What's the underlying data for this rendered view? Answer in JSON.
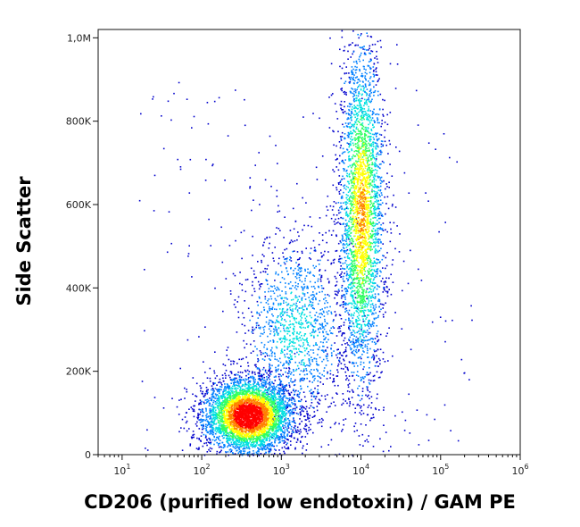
{
  "chart_data": {
    "type": "scatter",
    "subtype": "flow-cytometry density dot plot",
    "xlabel": "CD206 (purified low endotoxin) / GAM PE",
    "ylabel": "Side Scatter",
    "x_scale": "log",
    "xlim": [
      5,
      1000000
    ],
    "ylim": [
      0,
      1020000
    ],
    "x_ticks": [
      {
        "base": "10",
        "exp": "1",
        "value": 10
      },
      {
        "base": "10",
        "exp": "2",
        "value": 100
      },
      {
        "base": "10",
        "exp": "3",
        "value": 1000
      },
      {
        "base": "10",
        "exp": "4",
        "value": 10000
      },
      {
        "base": "10",
        "exp": "5",
        "value": 100000
      },
      {
        "base": "10",
        "exp": "6",
        "value": 1000000
      }
    ],
    "y_ticks": [
      {
        "label": "0",
        "value": 0
      },
      {
        "label": "200K",
        "value": 200000
      },
      {
        "label": "400K",
        "value": 400000
      },
      {
        "label": "600K",
        "value": 600000
      },
      {
        "label": "800K",
        "value": 800000
      },
      {
        "label": "1,0M",
        "value": 1000000
      }
    ],
    "grid": false,
    "legend": "none",
    "color_scale": [
      "#0000cc",
      "#0080ff",
      "#00e0e0",
      "#30ff60",
      "#ffff00",
      "#ff8000",
      "#ff0000"
    ],
    "populations": [
      {
        "x_center": 380,
        "y_center": 95000,
        "x_spread_log": 0.28,
        "y_spread": 45000,
        "weight": 0.5,
        "peak_density": 1.0
      },
      {
        "x_center": 10000,
        "y_center": 580000,
        "x_spread_log": 0.14,
        "y_spread": 210000,
        "weight": 0.35,
        "peak_density": 0.7
      },
      {
        "x_center": 1500,
        "y_center": 300000,
        "x_spread_log": 0.35,
        "y_spread": 120000,
        "weight": 0.15,
        "peak_density": 0.3
      }
    ]
  }
}
